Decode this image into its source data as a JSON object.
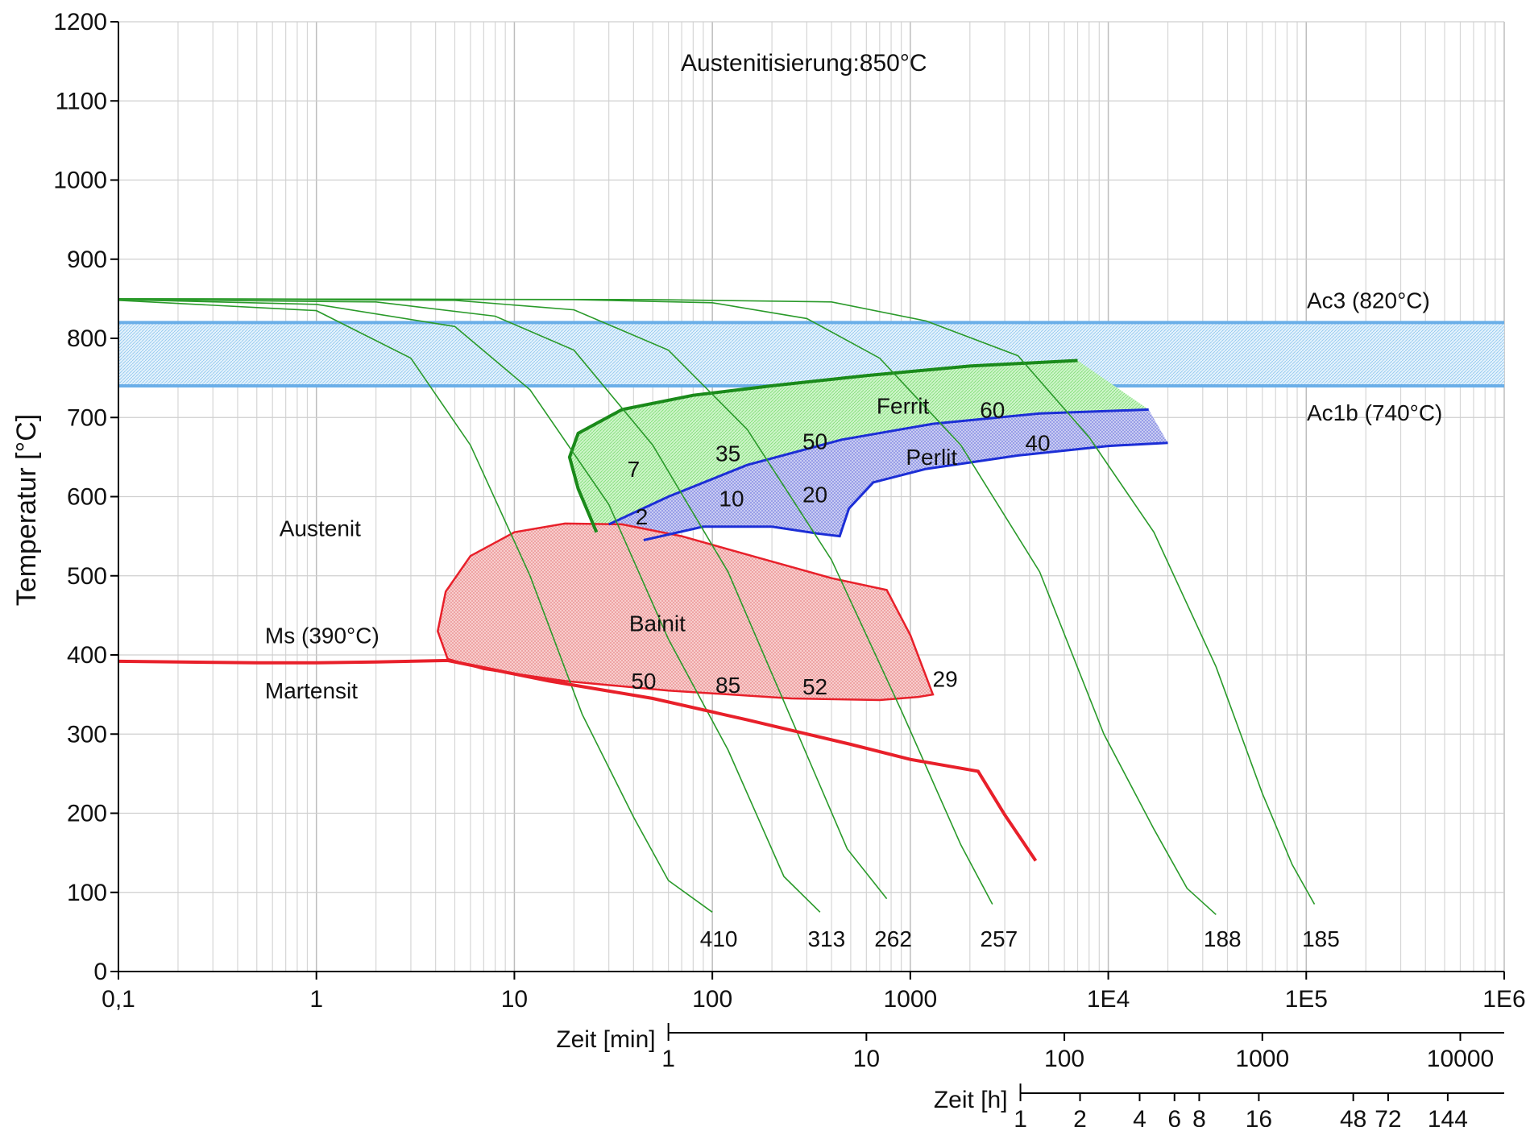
{
  "chart_data": {
    "type": "line",
    "title": "",
    "annotation_top": "Austenitisierung:850°C",
    "ylabel": "Temperatur [°C]",
    "xscale": "log",
    "xlim": [
      0.1,
      1000000
    ],
    "ylim": [
      0,
      1200
    ],
    "y_ticks": [
      0,
      100,
      200,
      300,
      400,
      500,
      600,
      700,
      800,
      900,
      1000,
      1100,
      1200
    ],
    "x_ticks": [
      {
        "value": 0.1,
        "label": "0,1"
      },
      {
        "value": 1,
        "label": "1"
      },
      {
        "value": 10,
        "label": "10"
      },
      {
        "value": 100,
        "label": "100"
      },
      {
        "value": 1000,
        "label": "1000"
      },
      {
        "value": 10000,
        "label": "1E4"
      },
      {
        "value": 100000,
        "label": "1E5"
      },
      {
        "value": 1000000,
        "label": "1E6"
      }
    ],
    "secondary_axes": [
      {
        "title": "Zeit [min]",
        "seconds_per_unit": 60,
        "ticks": [
          {
            "value": 1,
            "label": "1"
          },
          {
            "value": 10,
            "label": "10"
          },
          {
            "value": 100,
            "label": "100"
          },
          {
            "value": 1000,
            "label": "1000"
          },
          {
            "value": 10000,
            "label": "10000"
          }
        ]
      },
      {
        "title": "Zeit [h]",
        "seconds_per_unit": 3600,
        "ticks": [
          {
            "value": 1,
            "label": "1"
          },
          {
            "value": 2,
            "label": "2"
          },
          {
            "value": 4,
            "label": "4"
          },
          {
            "value": 6,
            "label": "6"
          },
          {
            "value": 8,
            "label": "8"
          },
          {
            "value": 16,
            "label": "16"
          },
          {
            "value": 48,
            "label": "48"
          },
          {
            "value": 72,
            "label": "72"
          },
          {
            "value": 144,
            "label": "144"
          }
        ]
      }
    ],
    "grid": true,
    "bands": [
      {
        "name": "Ac3 (820°C)",
        "value": 820,
        "color": "#6aaee8"
      },
      {
        "name": "Ac1b (740°C)",
        "value": 740,
        "color": "#6aaee8"
      }
    ],
    "phase_labels": [
      {
        "text": "Austenit",
        "x": 0.65,
        "y": 550
      },
      {
        "text": "Martensit",
        "x": 0.55,
        "y": 345
      },
      {
        "text": "Ms (390°C)",
        "x": 0.55,
        "y": 415
      },
      {
        "text": "Ferrit",
        "x": 675,
        "y": 705
      },
      {
        "text": "Perlit",
        "x": 950,
        "y": 640
      },
      {
        "text": "Bainit",
        "x": 38,
        "y": 430
      }
    ],
    "cooling_curves": [
      {
        "hardness": "410",
        "points": [
          [
            0.1,
            848
          ],
          [
            1,
            835
          ],
          [
            3,
            775
          ],
          [
            6,
            665
          ],
          [
            12,
            500
          ],
          [
            22,
            325
          ],
          [
            40,
            195
          ],
          [
            60,
            115
          ],
          [
            100,
            75
          ]
        ]
      },
      {
        "hardness": "313",
        "points": [
          [
            0.1,
            849
          ],
          [
            1,
            843
          ],
          [
            5,
            815
          ],
          [
            12,
            735
          ],
          [
            30,
            590
          ],
          [
            60,
            420
          ],
          [
            120,
            280
          ],
          [
            230,
            120
          ],
          [
            350,
            75
          ]
        ]
      },
      {
        "hardness": "262",
        "points": [
          [
            0.1,
            849
          ],
          [
            2,
            846
          ],
          [
            8,
            828
          ],
          [
            20,
            785
          ],
          [
            50,
            665
          ],
          [
            120,
            505
          ],
          [
            250,
            320
          ],
          [
            480,
            155
          ],
          [
            760,
            92
          ]
        ]
      },
      {
        "hardness": "257",
        "points": [
          [
            0.1,
            850
          ],
          [
            5,
            848
          ],
          [
            20,
            836
          ],
          [
            60,
            785
          ],
          [
            150,
            685
          ],
          [
            400,
            520
          ],
          [
            900,
            330
          ],
          [
            1800,
            160
          ],
          [
            2600,
            85
          ]
        ]
      },
      {
        "hardness": "188",
        "points": [
          [
            0.1,
            850
          ],
          [
            20,
            849
          ],
          [
            100,
            845
          ],
          [
            300,
            825
          ],
          [
            700,
            775
          ],
          [
            1800,
            665
          ],
          [
            4500,
            505
          ],
          [
            9500,
            300
          ],
          [
            17000,
            180
          ],
          [
            25000,
            105
          ],
          [
            35000,
            72
          ]
        ]
      },
      {
        "hardness": "185",
        "points": [
          [
            0.1,
            850
          ],
          [
            50,
            849
          ],
          [
            400,
            846
          ],
          [
            1200,
            822
          ],
          [
            3500,
            778
          ],
          [
            8000,
            675
          ],
          [
            17000,
            555
          ],
          [
            35000,
            385
          ],
          [
            60000,
            225
          ],
          [
            85000,
            135
          ],
          [
            110000,
            85
          ]
        ]
      }
    ],
    "regions": [
      {
        "name": "Ferrit",
        "color": "#1a8a1a",
        "fill": "#b7efb0",
        "upper": [
          [
            26,
            555
          ],
          [
            21,
            610
          ],
          [
            19,
            650
          ],
          [
            21,
            680
          ],
          [
            35,
            710
          ],
          [
            80,
            728
          ],
          [
            200,
            740
          ],
          [
            600,
            753
          ],
          [
            2000,
            765
          ],
          [
            7000,
            772
          ]
        ],
        "lower": [
          [
            30,
            565
          ],
          [
            60,
            600
          ],
          [
            150,
            640
          ],
          [
            450,
            672
          ],
          [
            1300,
            692
          ],
          [
            4500,
            705
          ],
          [
            16000,
            710
          ]
        ]
      },
      {
        "name": "Perlit",
        "color": "#1c2ed6",
        "fill": "#b5b9ef",
        "upper": [
          [
            30,
            565
          ],
          [
            60,
            600
          ],
          [
            150,
            640
          ],
          [
            450,
            672
          ],
          [
            1300,
            692
          ],
          [
            4500,
            705
          ],
          [
            16000,
            710
          ]
        ],
        "lower": [
          [
            45,
            545
          ],
          [
            90,
            562
          ],
          [
            200,
            562
          ],
          [
            350,
            553
          ],
          [
            440,
            550
          ],
          [
            490,
            585
          ],
          [
            650,
            618
          ],
          [
            1200,
            635
          ],
          [
            3500,
            652
          ],
          [
            10000,
            664
          ],
          [
            20000,
            668
          ]
        ]
      },
      {
        "name": "Bainit",
        "color": "#e8202a",
        "fill": "#f6b9b9",
        "outline": [
          [
            4.6,
            395
          ],
          [
            4.1,
            430
          ],
          [
            4.5,
            480
          ],
          [
            6,
            525
          ],
          [
            10,
            555
          ],
          [
            18,
            566
          ],
          [
            35,
            565
          ],
          [
            70,
            550
          ],
          [
            170,
            523
          ],
          [
            400,
            497
          ],
          [
            760,
            482
          ],
          [
            1000,
            425
          ],
          [
            1300,
            350
          ],
          [
            1100,
            347
          ],
          [
            700,
            343
          ],
          [
            250,
            345
          ],
          [
            60,
            355
          ],
          [
            18,
            367
          ],
          [
            7,
            382
          ],
          [
            4.6,
            395
          ]
        ]
      }
    ],
    "series": [
      {
        "name": "Ms (390°C)",
        "color": "#e8202a",
        "points": [
          [
            0.1,
            392
          ],
          [
            0.5,
            390
          ],
          [
            1,
            390
          ],
          [
            2,
            391
          ],
          [
            4.6,
            393
          ],
          [
            15,
            367
          ],
          [
            50,
            345
          ],
          [
            150,
            318
          ],
          [
            500,
            287
          ],
          [
            1000,
            268
          ],
          [
            2200,
            253
          ],
          [
            3000,
            198
          ],
          [
            4300,
            140
          ]
        ]
      }
    ],
    "transformation_labels": [
      {
        "text": "7",
        "x": 40,
        "y": 625
      },
      {
        "text": "35",
        "x": 120,
        "y": 645
      },
      {
        "text": "50",
        "x": 330,
        "y": 660
      },
      {
        "text": "60",
        "x": 2600,
        "y": 700
      },
      {
        "text": "2",
        "x": 44,
        "y": 565
      },
      {
        "text": "10",
        "x": 125,
        "y": 588
      },
      {
        "text": "20",
        "x": 330,
        "y": 593
      },
      {
        "text": "40",
        "x": 4400,
        "y": 658
      },
      {
        "text": "50",
        "x": 45,
        "y": 357
      },
      {
        "text": "85",
        "x": 120,
        "y": 352
      },
      {
        "text": "52",
        "x": 330,
        "y": 350
      },
      {
        "text": "29",
        "x": 1500,
        "y": 360
      }
    ]
  }
}
